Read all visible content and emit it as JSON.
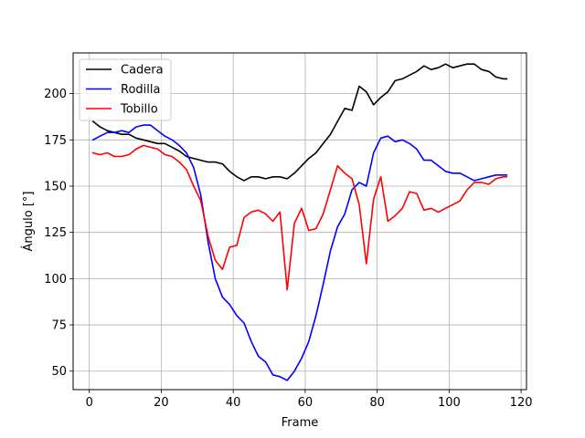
{
  "chart_data": {
    "type": "line",
    "title": "",
    "xlabel": "Frame",
    "ylabel": "Ángulo [°]",
    "xlim": [
      -4.5,
      121.5
    ],
    "ylim": [
      40,
      222
    ],
    "xticks": [
      0,
      20,
      40,
      60,
      80,
      100,
      120
    ],
    "yticks": [
      50,
      75,
      100,
      125,
      150,
      175,
      200
    ],
    "grid": true,
    "legend": "upper left",
    "series": [
      {
        "name": "Cadera",
        "color": "#000000",
        "x": [
          1,
          3,
          5,
          7,
          9,
          11,
          13,
          15,
          17,
          19,
          21,
          23,
          25,
          27,
          29,
          31,
          33,
          35,
          37,
          39,
          41,
          43,
          45,
          47,
          49,
          51,
          53,
          55,
          57,
          59,
          61,
          63,
          65,
          67,
          69,
          71,
          73,
          75,
          77,
          79,
          81,
          83,
          85,
          87,
          89,
          91,
          93,
          95,
          97,
          99,
          101,
          103,
          105,
          107,
          109,
          111,
          113,
          115,
          116
        ],
        "y": [
          185,
          182,
          180,
          179,
          178,
          178,
          176,
          175,
          174,
          173,
          173,
          171,
          169,
          166,
          165,
          164,
          163,
          163,
          162,
          158,
          155,
          153,
          155,
          155,
          154,
          155,
          155,
          154,
          157,
          161,
          165,
          168,
          173,
          178,
          185,
          192,
          191,
          204,
          201,
          194,
          198,
          201,
          207,
          208,
          210,
          212,
          215,
          213,
          214,
          216,
          214,
          215,
          216,
          216,
          213,
          212,
          209,
          208,
          208
        ]
      },
      {
        "name": "Rodilla",
        "color": "#0000ff",
        "x": [
          1,
          3,
          5,
          7,
          9,
          11,
          13,
          15,
          17,
          19,
          21,
          23,
          25,
          27,
          29,
          31,
          33,
          35,
          37,
          39,
          41,
          43,
          45,
          47,
          49,
          51,
          53,
          55,
          57,
          59,
          61,
          63,
          65,
          67,
          69,
          71,
          73,
          75,
          77,
          79,
          81,
          83,
          85,
          87,
          89,
          91,
          93,
          95,
          97,
          99,
          101,
          103,
          105,
          107,
          109,
          111,
          113,
          115,
          116
        ],
        "y": [
          175,
          177,
          179,
          179,
          180,
          179,
          182,
          183,
          183,
          180,
          177,
          175,
          172,
          168,
          160,
          145,
          120,
          100,
          90,
          86,
          80,
          76,
          66,
          58,
          55,
          48,
          47,
          45,
          50,
          57,
          66,
          80,
          97,
          115,
          128,
          135,
          148,
          152,
          150,
          168,
          176,
          177,
          174,
          175,
          173,
          170,
          164,
          164,
          161,
          158,
          157,
          157,
          155,
          153,
          154,
          155,
          156,
          156,
          156
        ]
      },
      {
        "name": "Tobillo",
        "color": "#ff0000",
        "x": [
          1,
          3,
          5,
          7,
          9,
          11,
          13,
          15,
          17,
          19,
          21,
          23,
          25,
          27,
          29,
          31,
          33,
          35,
          37,
          39,
          41,
          43,
          45,
          47,
          49,
          51,
          53,
          55,
          57,
          59,
          61,
          63,
          65,
          67,
          69,
          71,
          73,
          75,
          77,
          79,
          81,
          83,
          85,
          87,
          89,
          91,
          93,
          95,
          97,
          99,
          101,
          103,
          105,
          107,
          109,
          111,
          113,
          115,
          116
        ],
        "y": [
          168,
          167,
          168,
          166,
          166,
          167,
          170,
          172,
          171,
          170,
          167,
          166,
          163,
          159,
          150,
          142,
          123,
          110,
          105,
          117,
          118,
          133,
          136,
          137,
          135,
          131,
          136,
          94,
          130,
          138,
          126,
          127,
          135,
          148,
          161,
          157,
          154,
          140,
          108,
          143,
          155,
          131,
          134,
          138,
          147,
          146,
          137,
          138,
          136,
          138,
          140,
          142,
          148,
          152,
          152,
          151,
          154,
          155,
          155
        ]
      }
    ]
  }
}
